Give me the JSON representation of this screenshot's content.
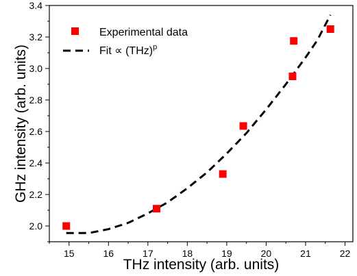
{
  "chart_data": {
    "type": "scatter",
    "title": "",
    "xlabel": "THz intensity (arb. units)",
    "ylabel": "GHz intensity (arb. units)",
    "xlim": [
      14.5,
      22.2
    ],
    "ylim": [
      1.9,
      3.4
    ],
    "xticks": [
      15,
      16,
      17,
      18,
      19,
      20,
      21,
      22
    ],
    "yticks": [
      2.0,
      2.2,
      2.4,
      2.6,
      2.8,
      3.0,
      3.2,
      3.4
    ],
    "grid": false,
    "legend_position": "top-left",
    "series": [
      {
        "name": "Experimental data",
        "kind": "marker-square",
        "color": "#ff0000",
        "points": [
          [
            14.93,
            2.0
          ],
          [
            17.22,
            2.11
          ],
          [
            18.9,
            2.33
          ],
          [
            19.42,
            2.635
          ],
          [
            20.67,
            2.95
          ],
          [
            20.7,
            3.175
          ],
          [
            21.63,
            3.25
          ]
        ]
      },
      {
        "name_main": "Fit ∝ (THz)",
        "name_sup": "p",
        "kind": "dashed-line",
        "color": "#000000",
        "points": [
          [
            14.93,
            1.955
          ],
          [
            15.5,
            1.955
          ],
          [
            16.0,
            1.98
          ],
          [
            16.5,
            2.02
          ],
          [
            17.0,
            2.08
          ],
          [
            17.5,
            2.15
          ],
          [
            18.0,
            2.24
          ],
          [
            18.5,
            2.34
          ],
          [
            19.0,
            2.46
          ],
          [
            19.5,
            2.59
          ],
          [
            20.0,
            2.74
          ],
          [
            20.5,
            2.9
          ],
          [
            21.0,
            3.07
          ],
          [
            21.3,
            3.18
          ],
          [
            21.63,
            3.34
          ]
        ]
      }
    ]
  }
}
